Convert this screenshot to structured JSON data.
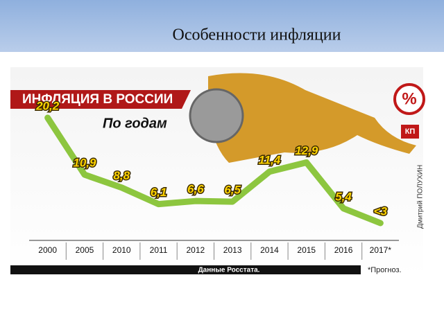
{
  "slide_title": "Особенности инфляции",
  "chart_data": {
    "type": "line",
    "title": "ИНФЛЯЦИЯ В РОССИИ",
    "subtitle": "По годам",
    "badge": "%",
    "categories": [
      "2000",
      "2005",
      "2010",
      "2011",
      "2012",
      "2013",
      "2014",
      "2015",
      "2016",
      "2017*"
    ],
    "series": [
      {
        "name": "Инфляция",
        "color": "#8dc63f",
        "values": [
          20.2,
          10.9,
          8.8,
          6.1,
          6.6,
          6.5,
          11.4,
          12.9,
          5.4,
          3
        ],
        "value_labels": [
          "20,2",
          "10,9",
          "8,8",
          "6,1",
          "6,6",
          "6,5",
          "11,4",
          "12,9",
          "5,4",
          "<3"
        ]
      }
    ],
    "source": "Данные Росстата.",
    "note": "*Прогноз.",
    "credit": "Дмитрий ПОЛУХИН",
    "logo": "КП"
  }
}
